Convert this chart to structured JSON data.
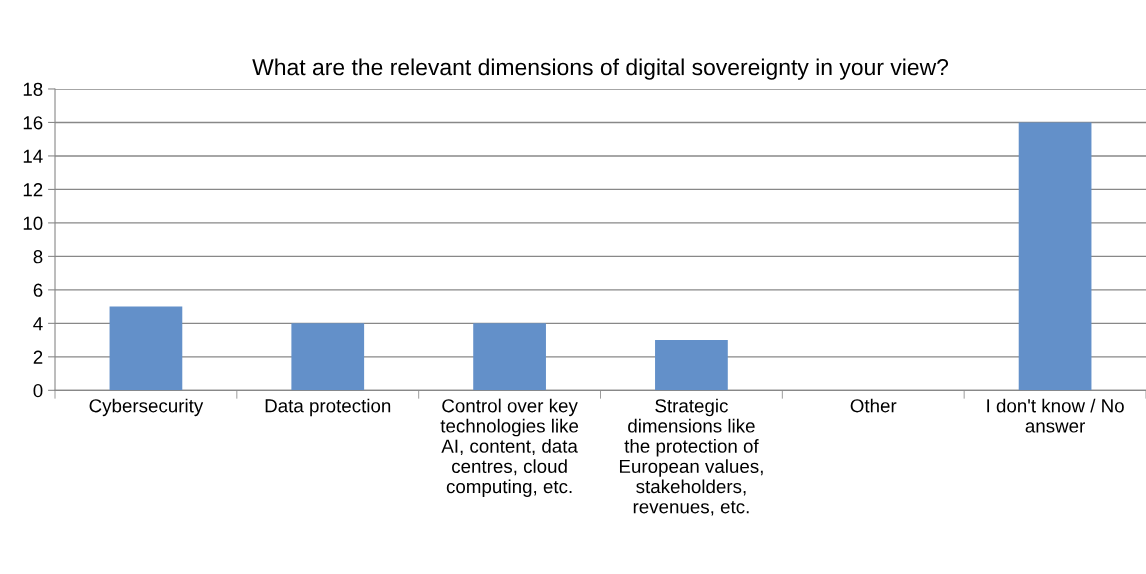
{
  "chart_data": {
    "type": "bar",
    "title": "What are the relevant dimensions of digital sovereignty in your view?",
    "categories": [
      "Cybersecurity",
      "Data protection",
      "Control over key\ntechnologies like\nAI, content, data\ncentres, cloud\ncomputing, etc.",
      "Strategic\ndimensions like\nthe protection of\nEuropean values,\nstakeholders,\nrevenues, etc.",
      "Other",
      "I don't know / No\nanswer"
    ],
    "values": [
      5,
      4,
      4,
      3,
      0,
      16
    ],
    "color": "#6390c9",
    "ylim": [
      0,
      18
    ],
    "yticks": [
      0,
      2,
      4,
      6,
      8,
      10,
      12,
      14,
      16,
      18
    ],
    "grid": "y",
    "legend": false
  }
}
